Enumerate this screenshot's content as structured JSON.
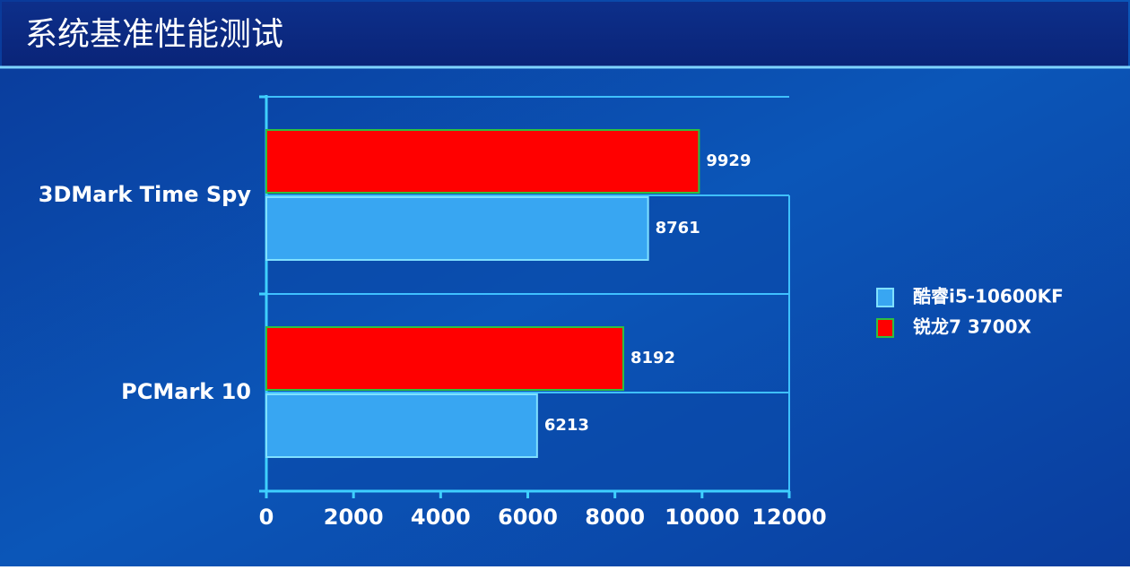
{
  "chart_data": {
    "type": "bar",
    "orientation": "horizontal",
    "title": "系统基准性能测试",
    "categories": [
      "3DMark Time Spy",
      "PCMark 10"
    ],
    "series": [
      {
        "name": "酷睿i5-10600KF",
        "color": "#38a6f2",
        "values": [
          8761,
          6213
        ]
      },
      {
        "name": "锐龙7 3700X",
        "color": "#ff0000",
        "values": [
          9929,
          8192
        ]
      }
    ],
    "xlim": [
      0,
      12000
    ],
    "xticks": [
      0,
      2000,
      4000,
      6000,
      8000,
      10000,
      12000
    ],
    "legend": "right"
  }
}
